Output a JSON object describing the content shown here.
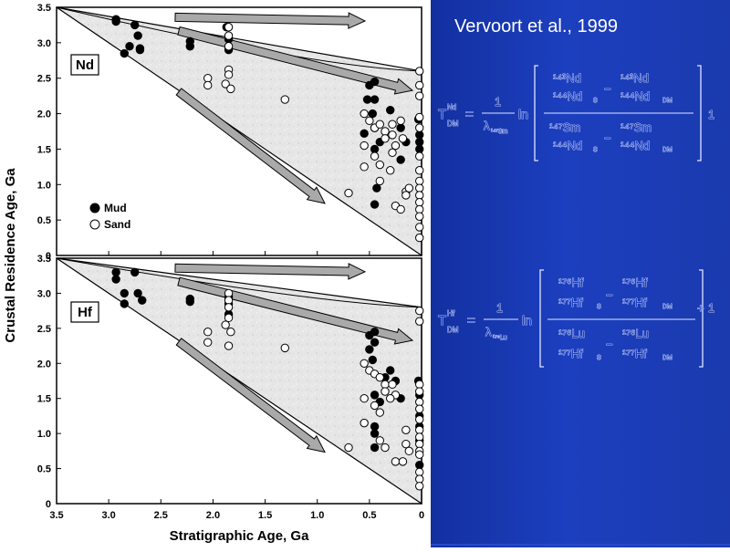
{
  "citation": "Vervoort et al., 1999",
  "ylabel": "Crustal Residence Age, Ga",
  "xlabel": "Stratigraphic Age, Ga",
  "legend": {
    "mud": "Mud",
    "sand": "Sand"
  },
  "colors": {
    "panel_blue": "#1c3fbf",
    "fill_gray": "#e4e4e4",
    "arrow_gray": "#a9a9a9"
  },
  "equations": {
    "nd": {
      "lhs": "T",
      "lhs_sup": "Nd",
      "lhs_sub": "DM",
      "eq": "=",
      "num1": "1",
      "lambda": "λ",
      "lambda_sub": "¹⁴⁷Sm",
      "ln": "ln",
      "plus": "+",
      "tail": "1",
      "t1": "¹⁴³Nd",
      "b1": "¹⁴⁴Nd",
      "s1": "S",
      "minus": "−",
      "t2": "¹⁴³Nd",
      "b2": "¹⁴⁴Nd",
      "s2": "DM",
      "t3": "¹⁴⁷Sm",
      "b3": "¹⁴⁴Nd",
      "s3": "S",
      "t4": "¹⁴⁷Sm",
      "b4": "¹⁴⁴Nd",
      "s4": "DM"
    },
    "hf": {
      "lhs": "T",
      "lhs_sup": "Hf",
      "lhs_sub": "DM",
      "eq": "=",
      "num1": "1",
      "lambda": "λ",
      "lambda_sub": "¹⁷⁶Lu",
      "ln": "ln",
      "plus": "+",
      "tail": "1",
      "t1": "¹⁷⁶Hf",
      "b1": "¹⁷⁷Hf",
      "s1": "S",
      "minus": "−",
      "t2": "¹⁷⁶Hf",
      "b2": "¹⁷⁷Hf",
      "s2": "DM",
      "t3": "¹⁷⁶Lu",
      "b3": "¹⁷⁷Hf",
      "s3": "S",
      "t4": "¹⁷⁶Lu",
      "b4": "¹⁷⁷Hf",
      "s4": "DM"
    }
  },
  "chart_data": [
    {
      "type": "scatter",
      "label": "Nd",
      "xlim": [
        3.5,
        0
      ],
      "ylim": [
        0,
        3.5
      ],
      "yticks": [
        "0",
        "0.5",
        "1.0",
        "1.5",
        "2.0",
        "2.5",
        "3.0",
        "3.5"
      ],
      "xticks": [
        "3.5",
        "3.0",
        "2.5",
        "2.0",
        "1.5",
        "1.0",
        "0.5",
        "0"
      ],
      "envelope": [
        [
          3.5,
          3.5
        ],
        [
          0.0,
          2.6
        ],
        [
          0.0,
          0.0
        ]
      ],
      "series": [
        {
          "name": "Mud",
          "points": [
            [
              2.93,
              3.33
            ],
            [
              2.93,
              3.3
            ],
            [
              2.75,
              3.25
            ],
            [
              2.72,
              3.1
            ],
            [
              2.8,
              2.95
            ],
            [
              2.7,
              2.92
            ],
            [
              2.85,
              2.85
            ],
            [
              2.7,
              2.9
            ],
            [
              2.22,
              3.02
            ],
            [
              2.22,
              2.95
            ],
            [
              1.87,
              3.22
            ],
            [
              1.85,
              3.05
            ],
            [
              1.85,
              2.9
            ],
            [
              0.5,
              2.4
            ],
            [
              0.45,
              2.45
            ],
            [
              0.52,
              2.2
            ],
            [
              0.45,
              2.2
            ],
            [
              0.47,
              2.0
            ],
            [
              0.45,
              1.8
            ],
            [
              0.55,
              1.72
            ],
            [
              0.4,
              1.6
            ],
            [
              0.45,
              1.5
            ],
            [
              0.43,
              0.95
            ],
            [
              0.2,
              1.35
            ],
            [
              0.2,
              1.8
            ],
            [
              0.3,
              2.05
            ],
            [
              0.15,
              1.6
            ],
            [
              0.45,
              0.72
            ],
            [
              0.03,
              1.92
            ],
            [
              0.02,
              1.7
            ],
            [
              0.02,
              1.5
            ],
            [
              0.02,
              1.6
            ]
          ]
        },
        {
          "name": "Sand",
          "points": [
            [
              1.85,
              3.22
            ],
            [
              1.85,
              3.1
            ],
            [
              1.85,
              2.95
            ],
            [
              2.05,
              2.5
            ],
            [
              2.05,
              2.4
            ],
            [
              1.85,
              2.62
            ],
            [
              1.85,
              2.55
            ],
            [
              1.88,
              2.42
            ],
            [
              1.83,
              2.35
            ],
            [
              1.31,
              2.2
            ],
            [
              0.55,
              2.0
            ],
            [
              0.5,
              1.9
            ],
            [
              0.45,
              1.8
            ],
            [
              0.4,
              1.85
            ],
            [
              0.35,
              1.75
            ],
            [
              0.35,
              1.65
            ],
            [
              0.28,
              1.85
            ],
            [
              0.28,
              1.7
            ],
            [
              0.25,
              1.55
            ],
            [
              0.28,
              1.45
            ],
            [
              0.2,
              1.9
            ],
            [
              0.18,
              1.65
            ],
            [
              0.55,
              1.55
            ],
            [
              0.45,
              1.4
            ],
            [
              0.4,
              1.28
            ],
            [
              0.55,
              1.25
            ],
            [
              0.4,
              1.05
            ],
            [
              0.3,
              1.2
            ],
            [
              0.7,
              0.88
            ],
            [
              0.25,
              0.7
            ],
            [
              0.15,
              0.9
            ],
            [
              0.15,
              0.85
            ],
            [
              0.12,
              0.95
            ],
            [
              0.2,
              0.65
            ],
            [
              0.02,
              2.6
            ],
            [
              0.02,
              2.4
            ],
            [
              0.02,
              2.25
            ],
            [
              0.02,
              1.95
            ],
            [
              0.02,
              1.8
            ],
            [
              0.02,
              1.4
            ],
            [
              0.02,
              1.2
            ],
            [
              0.02,
              1.05
            ],
            [
              0.02,
              0.95
            ],
            [
              0.02,
              0.85
            ],
            [
              0.02,
              0.75
            ],
            [
              0.02,
              0.65
            ],
            [
              0.02,
              0.55
            ],
            [
              0.02,
              0.4
            ],
            [
              0.02,
              0.25
            ]
          ]
        }
      ]
    },
    {
      "type": "scatter",
      "label": "Hf",
      "xlim": [
        3.5,
        0
      ],
      "ylim": [
        0,
        3.5
      ],
      "yticks": [
        "0",
        "0.5",
        "1.0",
        "1.5",
        "2.0",
        "2.5",
        "3.0",
        "3.5"
      ],
      "xticks": [
        "3.5",
        "3.0",
        "2.5",
        "2.0",
        "1.5",
        "1.0",
        "0.5",
        "0"
      ],
      "xlabel": "Stratigraphic Age, Ga",
      "envelope": [
        [
          3.5,
          3.5
        ],
        [
          0.0,
          2.8
        ],
        [
          0.0,
          0.0
        ]
      ],
      "series": [
        {
          "name": "Mud",
          "points": [
            [
              2.93,
              3.3
            ],
            [
              2.93,
              3.2
            ],
            [
              2.75,
              3.3
            ],
            [
              2.85,
              3.0
            ],
            [
              2.72,
              3.0
            ],
            [
              2.68,
              2.9
            ],
            [
              2.85,
              2.85
            ],
            [
              2.22,
              2.92
            ],
            [
              2.22,
              2.88
            ],
            [
              1.85,
              2.95
            ],
            [
              1.85,
              2.85
            ],
            [
              1.85,
              2.7
            ],
            [
              0.5,
              2.4
            ],
            [
              0.45,
              2.45
            ],
            [
              0.45,
              2.3
            ],
            [
              0.5,
              2.2
            ],
            [
              0.47,
              2.05
            ],
            [
              0.3,
              1.9
            ],
            [
              0.35,
              1.8
            ],
            [
              0.25,
              1.75
            ],
            [
              0.45,
              1.55
            ],
            [
              0.4,
              1.45
            ],
            [
              0.45,
              1.1
            ],
            [
              0.45,
              1.0
            ],
            [
              0.45,
              0.8
            ],
            [
              0.2,
              1.5
            ],
            [
              0.03,
              1.75
            ],
            [
              0.02,
              1.55
            ],
            [
              0.02,
              1.25
            ],
            [
              0.02,
              1.1
            ],
            [
              0.02,
              0.9
            ],
            [
              0.02,
              0.55
            ]
          ]
        },
        {
          "name": "Sand",
          "points": [
            [
              1.85,
              3.0
            ],
            [
              1.85,
              2.9
            ],
            [
              1.85,
              2.8
            ],
            [
              2.05,
              2.45
            ],
            [
              2.05,
              2.3
            ],
            [
              1.85,
              2.65
            ],
            [
              1.88,
              2.55
            ],
            [
              1.83,
              2.45
            ],
            [
              1.85,
              2.25
            ],
            [
              1.31,
              2.22
            ],
            [
              0.55,
              2.0
            ],
            [
              0.5,
              1.9
            ],
            [
              0.45,
              1.85
            ],
            [
              0.4,
              1.8
            ],
            [
              0.35,
              1.7
            ],
            [
              0.35,
              1.6
            ],
            [
              0.28,
              1.7
            ],
            [
              0.25,
              1.55
            ],
            [
              0.3,
              1.5
            ],
            [
              0.55,
              1.5
            ],
            [
              0.45,
              1.4
            ],
            [
              0.4,
              1.3
            ],
            [
              0.55,
              1.15
            ],
            [
              0.4,
              0.9
            ],
            [
              0.35,
              0.8
            ],
            [
              0.7,
              0.8
            ],
            [
              0.25,
              0.6
            ],
            [
              0.15,
              1.05
            ],
            [
              0.15,
              0.85
            ],
            [
              0.12,
              0.75
            ],
            [
              0.18,
              0.6
            ],
            [
              0.02,
              2.75
            ],
            [
              0.02,
              2.6
            ],
            [
              0.02,
              1.7
            ],
            [
              0.02,
              1.6
            ],
            [
              0.02,
              1.45
            ],
            [
              0.02,
              1.35
            ],
            [
              0.02,
              1.2
            ],
            [
              0.02,
              1.05
            ],
            [
              0.02,
              0.95
            ],
            [
              0.02,
              0.85
            ],
            [
              0.02,
              0.75
            ],
            [
              0.02,
              0.7
            ],
            [
              0.02,
              0.45
            ],
            [
              0.02,
              0.35
            ],
            [
              0.02,
              0.25
            ]
          ]
        }
      ]
    }
  ]
}
